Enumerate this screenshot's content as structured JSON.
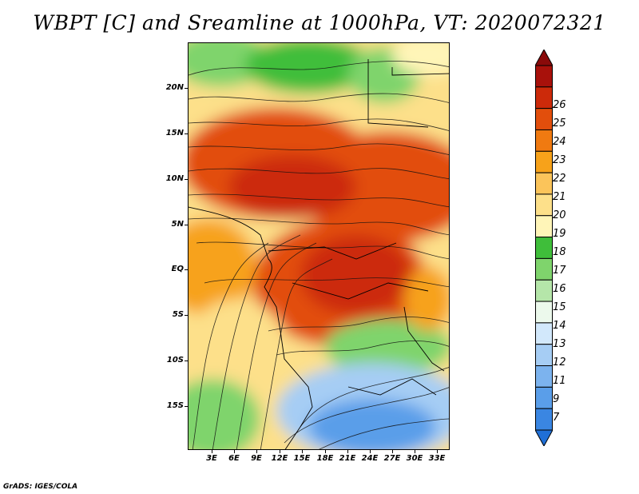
{
  "title": "WBPT [C] and Sreamline at 1000hPa, VT: 2020072321",
  "credit": "GrADS: IGES/COLA",
  "lat_labels": [
    "20N",
    "15N",
    "10N",
    "5N",
    "EQ",
    "5S",
    "10S",
    "15S"
  ],
  "lon_labels": [
    "3E",
    "6E",
    "9E",
    "12E",
    "15E",
    "18E",
    "21E",
    "24E",
    "27E",
    "30E",
    "33E"
  ],
  "colorbar": {
    "levels": [
      "7",
      "9",
      "11",
      "12",
      "13",
      "14",
      "15",
      "16",
      "17",
      "18",
      "19",
      "20",
      "21",
      "22",
      "23",
      "24",
      "25",
      "26"
    ],
    "colors": [
      "#1f6fd6",
      "#3a86e2",
      "#5a9ee9",
      "#7cb3ee",
      "#a6cdf4",
      "#d2e8fb",
      "#ecf9ec",
      "#b5e6a9",
      "#7fd46c",
      "#3fbe3a",
      "#fff5b8",
      "#fde08a",
      "#fbc45a",
      "#f7a21a",
      "#f07a11",
      "#e24e0c",
      "#cc2a0a",
      "#a8110b",
      "#8a0a0a"
    ]
  }
}
